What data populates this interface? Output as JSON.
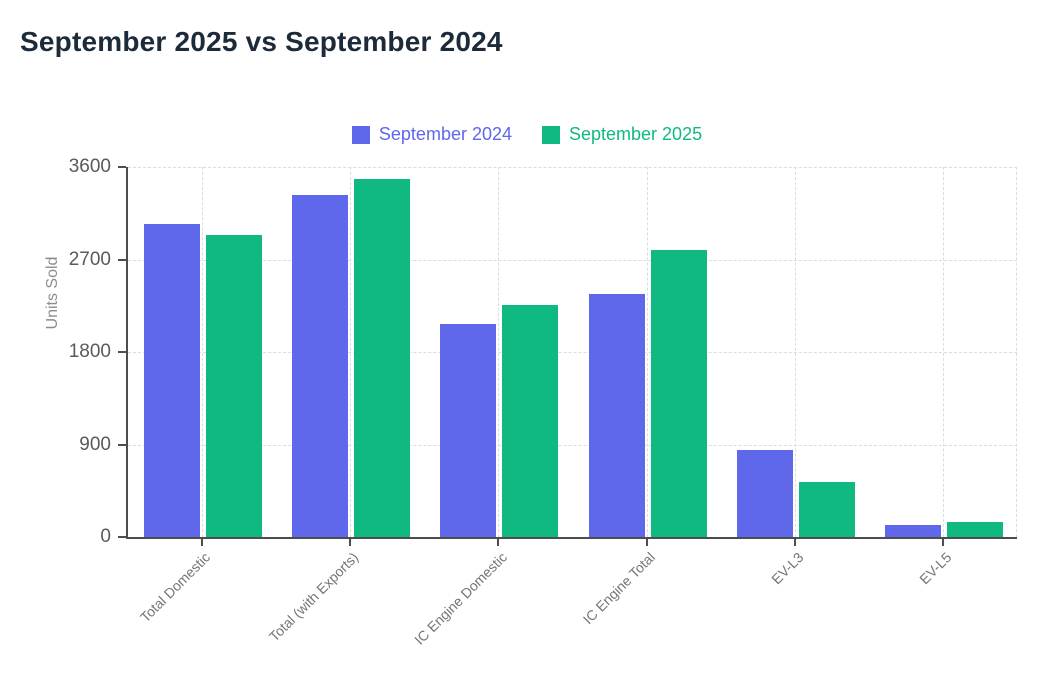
{
  "title": "September 2025 vs September 2024",
  "chart_data": {
    "type": "bar",
    "title": "September 2025 vs September 2024",
    "categories": [
      "Total Domestic",
      "Total (with Exports)",
      "IC Engine Domestic",
      "IC Engine Total",
      "EV-L3",
      "EV-L5"
    ],
    "series": [
      {
        "name": "September 2024",
        "color": "#5f67ea",
        "values": [
          3050,
          3330,
          2070,
          2360,
          845,
          115
        ]
      },
      {
        "name": "September 2025",
        "color": "#10b981",
        "values": [
          2940,
          3480,
          2260,
          2795,
          540,
          150
        ]
      }
    ],
    "xlabel": "",
    "ylabel": "Units Sold",
    "ylim": [
      0,
      3600
    ],
    "yticks": [
      0,
      900,
      1800,
      2700,
      3600
    ],
    "grid": "dashed",
    "legend_position": "top"
  },
  "colors": {
    "title": "#1d2a39",
    "axis": "#4d4d4d",
    "grid": "#dcdcdc",
    "y_tick_label": "#5a5a5a",
    "x_tick_label": "#757575",
    "y_axis_title": "#8c8c8c",
    "background": "#ffffff"
  }
}
